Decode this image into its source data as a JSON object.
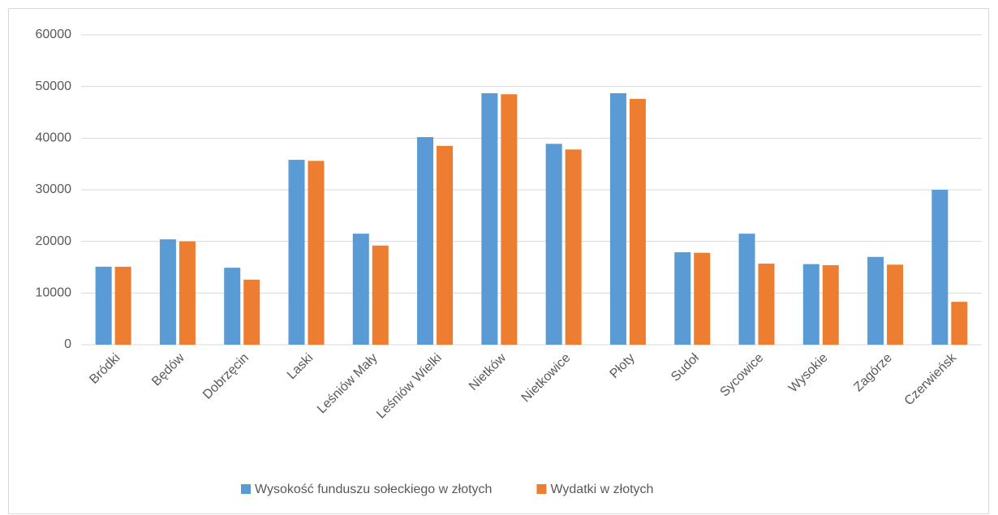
{
  "chart_data": {
    "type": "bar",
    "categories": [
      "Bródki",
      "Będów",
      "Dobrzęcin",
      "Laski",
      "Leśniów Mały",
      "Leśniów Wielki",
      "Nietków",
      "Nietkowice",
      "Płoty",
      "Sudoł",
      "Sycowice",
      "Wysokie",
      "Zagórze",
      "Czerwieńsk"
    ],
    "series": [
      {
        "name": "Wysokość funduszu sołeckiego w złotych",
        "color": "#5b9bd5",
        "values": [
          15100,
          20400,
          14900,
          35800,
          21500,
          40200,
          48700,
          38900,
          48700,
          17900,
          21500,
          15600,
          17000,
          30000
        ]
      },
      {
        "name": "Wydatki w złotych",
        "color": "#ed7d31",
        "values": [
          15100,
          20000,
          12600,
          35600,
          19200,
          38500,
          48500,
          37800,
          47600,
          17800,
          15700,
          15400,
          15500,
          8300
        ]
      }
    ],
    "ylim": [
      0,
      60000
    ],
    "yticks": [
      0,
      10000,
      20000,
      30000,
      40000,
      50000,
      60000
    ],
    "grid": true
  }
}
